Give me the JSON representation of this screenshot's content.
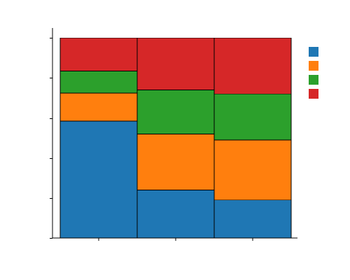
{
  "chart_data": {
    "type": "bar",
    "stacked": true,
    "normalized": true,
    "categories": [
      "",
      "",
      ""
    ],
    "series": [
      {
        "color": "#1f77b4",
        "values": [
          0.585,
          0.24,
          0.19
        ]
      },
      {
        "color": "#ff7f0e",
        "values": [
          0.14,
          0.28,
          0.3
        ]
      },
      {
        "color": "#2ca02c",
        "values": [
          0.11,
          0.22,
          0.23
        ]
      },
      {
        "color": "#d62728",
        "values": [
          0.165,
          0.26,
          0.28
        ]
      }
    ],
    "ylim": [
      0,
      1.05
    ],
    "yticks": [
      0,
      0.2,
      0.4,
      0.6,
      0.8,
      1.0
    ],
    "title": "",
    "xlabel": "",
    "ylabel": "",
    "legend_position": "top-right",
    "grid": false
  }
}
